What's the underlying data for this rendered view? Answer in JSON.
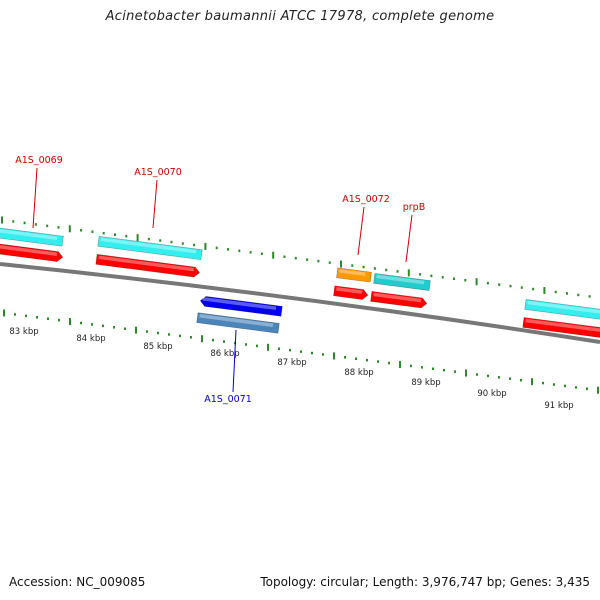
{
  "title": "Acinetobacter baumannii ATCC 17978, complete genome",
  "footer": {
    "accession_label": "Accession:",
    "accession_value": "NC_009085",
    "topology_label": "Topology:",
    "topology_value": "circular",
    "length_label": "Length:",
    "length_value": "3,976,747 bp",
    "genes_label": "Genes:",
    "genes_value": "3,435"
  },
  "colors": {
    "backbone": "#777777",
    "forward_gene_label": "#cc0000",
    "reverse_gene_label": "#0000cc",
    "tick": "#2a8a2a",
    "cds_forward": "#ff0000",
    "cds_reverse": "#0000ee",
    "gene_forward": "#33eeee",
    "gene_reverse": "#4a86bb",
    "gene_teal": "#22cccc",
    "gene_orange": "#ff9900"
  },
  "scale_labels": [
    "83 kbp",
    "84 kbp",
    "85 kbp",
    "86 kbp",
    "87 kbp",
    "88 kbp",
    "89 kbp",
    "90 kbp",
    "91 kbp"
  ],
  "gene_labels": [
    {
      "id": "A1S_0069",
      "strand": "forward"
    },
    {
      "id": "A1S_0070",
      "strand": "forward"
    },
    {
      "id": "A1S_0071",
      "strand": "reverse"
    },
    {
      "id": "A1S_0072",
      "strand": "forward"
    },
    {
      "id": "prpB",
      "strand": "forward"
    }
  ]
}
